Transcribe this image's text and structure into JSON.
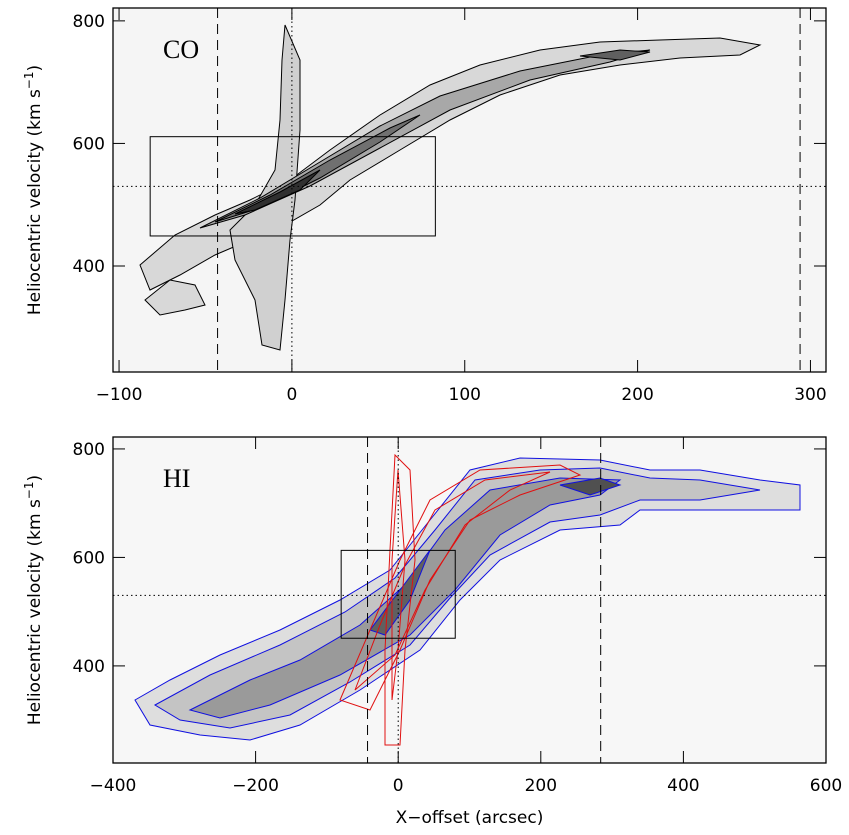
{
  "chart_data": [
    {
      "type": "contour",
      "panel_label": "CO",
      "ylabel": [
        "Heliocentric velocity (km s",
        "−1",
        ")"
      ],
      "xlim": [
        -103.5,
        309
      ],
      "ylim": [
        227,
        821
      ],
      "xticks": [
        {
          "value": -100,
          "label": "−100"
        },
        0,
        100,
        200,
        300
      ],
      "yticks": [
        400,
        600,
        800
      ],
      "dashed_vlines": [
        -43,
        294
      ],
      "dotted_vlines": [
        0
      ],
      "dotted_hlines": [
        530
      ],
      "box": {
        "x": [
          -82,
          83
        ],
        "y": [
          449,
          611
        ]
      }
    },
    {
      "type": "contour",
      "panel_label": "HI",
      "ylabel": [
        "Heliocentric velocity (km s",
        "−1",
        ")"
      ],
      "xlabel": "X−offset (arcsec)",
      "xlim": [
        -400,
        600
      ],
      "ylim": [
        221,
        822
      ],
      "xticks": [
        {
          "value": -400,
          "label": "−400"
        },
        {
          "value": -200,
          "label": "−200"
        },
        0,
        200,
        400,
        600
      ],
      "yticks": [
        400,
        600,
        800
      ],
      "dashed_vlines": [
        -43,
        284
      ],
      "dotted_vlines": [
        0
      ],
      "dotted_hlines": [
        530
      ],
      "box": {
        "x": [
          -80,
          80
        ],
        "y": [
          451,
          613
        ]
      }
    }
  ]
}
